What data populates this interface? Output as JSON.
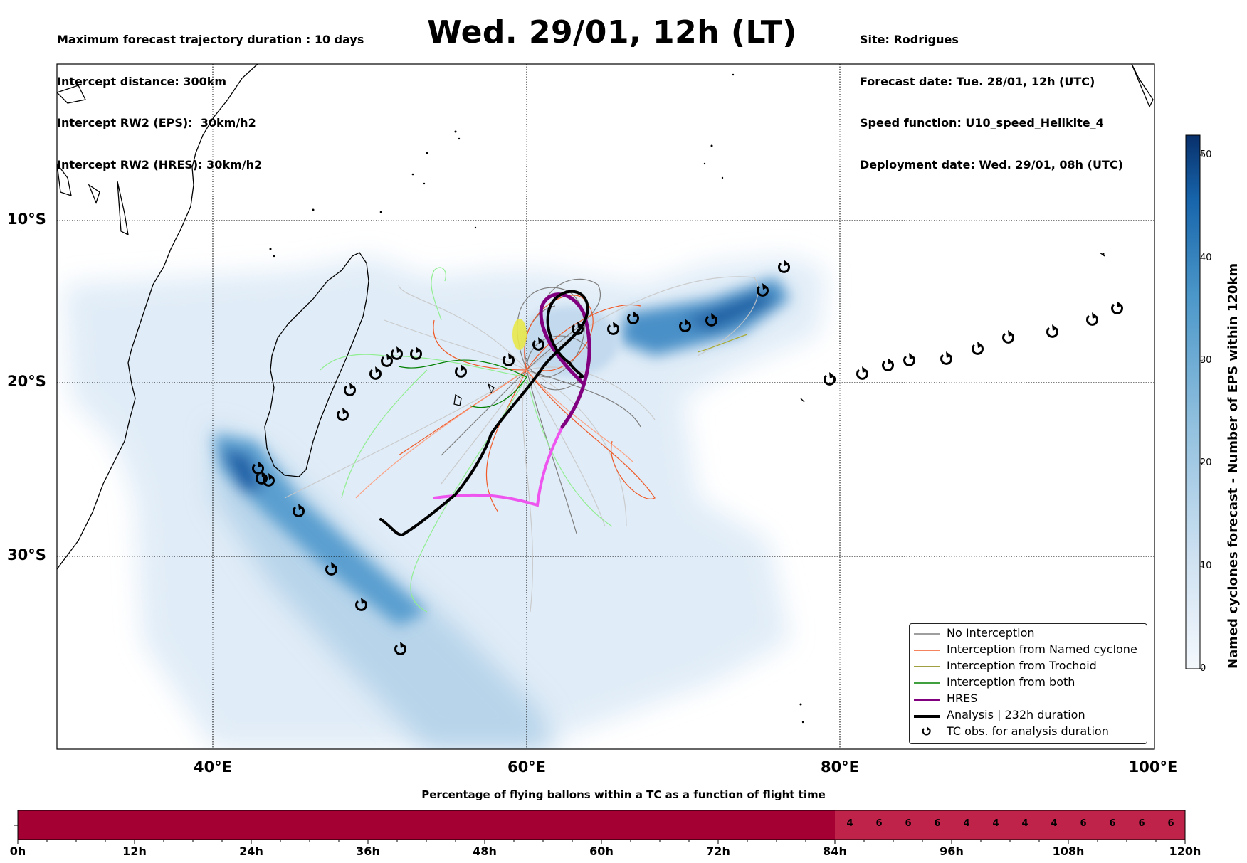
{
  "header": {
    "left_lines": [
      "Maximum forecast trajectory duration : 10 days",
      "Intercept distance: 300km",
      "Intercept RW2 (EPS):  30km/h2",
      "Intercept RW2 (HRES): 30km/h2"
    ],
    "title": "Wed. 29/01, 12h (LT)",
    "right_lines": [
      "Site: Rodrigues",
      "Forecast date: Tue. 28/01, 12h (UTC)",
      "Speed function: U10_speed_Helikite_4",
      "Deployment date: Wed. 29/01, 08h (UTC)"
    ]
  },
  "map": {
    "lat_labels": [
      "10°S",
      "20°S",
      "30°S"
    ],
    "lon_labels": [
      "40°E",
      "60°E",
      "80°E",
      "100°E"
    ],
    "colors": {
      "density_light": "#dbe9f6",
      "density_mid": "#6baed6",
      "density_dark": "#08519c",
      "no_interception": "#7f7f7f",
      "named_cyclone": "#f05a28",
      "trochoid": "#808000",
      "both": "#008000",
      "hres": "#800080",
      "hres_early": "#ee55ee",
      "analysis": "#000000"
    },
    "tc_obs_icon": "tc-cyclone-symbol-icon"
  },
  "legend": {
    "items": [
      {
        "label": "No Interception",
        "color": "#7f7f7f"
      },
      {
        "label": "Interception from Named cyclone",
        "color": "#f05a28"
      },
      {
        "label": "Interception from Trochoid",
        "color": "#808000"
      },
      {
        "label": "Interception from both",
        "color": "#008000"
      },
      {
        "label": "HRES",
        "color": "#800080"
      },
      {
        "label": "Analysis | 232h duration",
        "color": "#000000"
      },
      {
        "label": "TC obs. for analysis duration",
        "color": "#000000"
      }
    ]
  },
  "colorbar": {
    "label": "Named cyclones forecast - Number of EPS within 120km",
    "ticks": [
      "0",
      "10",
      "20",
      "30",
      "40",
      "50"
    ],
    "range": [
      0,
      52
    ]
  },
  "timeline": {
    "title": "Percentage of flying ballons within a TC as a function of flight time",
    "tick_labels": [
      "0h",
      "12h",
      "24h",
      "36h",
      "48h",
      "60h",
      "72h",
      "84h",
      "96h",
      "108h",
      "120h"
    ],
    "base_color": "#a50034",
    "accent_color": "#c0234a",
    "segments": [
      {
        "start_h": 84,
        "end_h": 87,
        "value": "4"
      },
      {
        "start_h": 87,
        "end_h": 90,
        "value": "6"
      },
      {
        "start_h": 90,
        "end_h": 93,
        "value": "6"
      },
      {
        "start_h": 93,
        "end_h": 96,
        "value": "6"
      },
      {
        "start_h": 96,
        "end_h": 99,
        "value": "4"
      },
      {
        "start_h": 99,
        "end_h": 102,
        "value": "4"
      },
      {
        "start_h": 102,
        "end_h": 105,
        "value": "4"
      },
      {
        "start_h": 105,
        "end_h": 108,
        "value": "4"
      },
      {
        "start_h": 108,
        "end_h": 111,
        "value": "6"
      },
      {
        "start_h": 111,
        "end_h": 114,
        "value": "6"
      },
      {
        "start_h": 114,
        "end_h": 117,
        "value": "6"
      },
      {
        "start_h": 117,
        "end_h": 120,
        "value": "6"
      }
    ]
  }
}
